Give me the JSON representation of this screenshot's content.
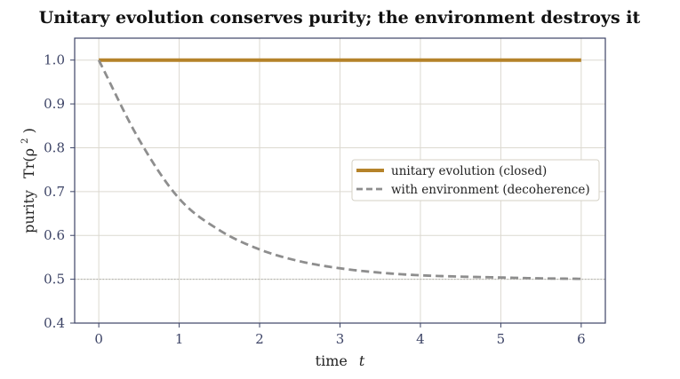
{
  "chart_data": {
    "type": "line",
    "title": "Unitary evolution conserves purity; the environment destroys it",
    "xlabel": "time",
    "xlabel_symbol": "t",
    "ylabel": "purity",
    "ylabel_symbol": "Tr(ρ",
    "ylabel_exponent": "2",
    "ylabel_close": ")",
    "xlim": [
      -0.3,
      6.3
    ],
    "ylim": [
      0.4,
      1.05
    ],
    "xticks": [
      0,
      1,
      2,
      3,
      4,
      5,
      6
    ],
    "yticks": [
      0.4,
      0.5,
      0.6,
      0.7,
      0.8,
      0.9,
      1.0
    ],
    "ytick_labels": [
      "0.4",
      "0.5",
      "0.6",
      "0.7",
      "0.8",
      "0.9",
      "1.0"
    ],
    "xtick_labels": [
      "0",
      "1",
      "2",
      "3",
      "4",
      "5",
      "6"
    ],
    "grid": true,
    "legend_position": "center-right",
    "reference_line": {
      "y": 0.5,
      "style": "dotted",
      "color": "#aaaaaa"
    },
    "series": [
      {
        "name": "unitary evolution (closed)",
        "color": "#b5832a",
        "style": "solid",
        "x": [
          0,
          1,
          2,
          3,
          4,
          5,
          6
        ],
        "y": [
          1.0,
          1.0,
          1.0,
          1.0,
          1.0,
          1.0,
          1.0
        ]
      },
      {
        "name": "with environment (decoherence)",
        "color": "#8e8e8e",
        "style": "dashed",
        "x": [
          0,
          0.5,
          1,
          1.5,
          2,
          2.5,
          3,
          3.5,
          4,
          4.5,
          5,
          5.5,
          6
        ],
        "y": [
          1.0,
          0.819,
          0.684,
          0.612,
          0.568,
          0.541,
          0.525,
          0.515,
          0.509,
          0.506,
          0.504,
          0.502,
          0.501
        ]
      }
    ]
  }
}
